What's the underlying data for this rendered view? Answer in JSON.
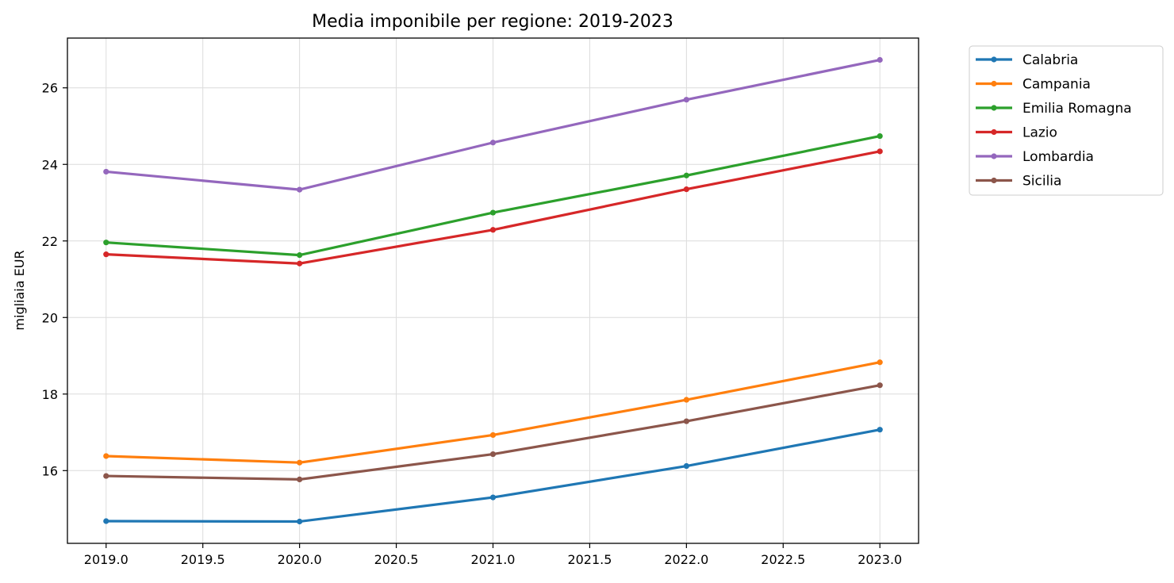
{
  "chart_data": {
    "type": "line",
    "title": "Media imponibile per regione: 2019-2023",
    "xlabel": "",
    "ylabel": "migliaia EUR",
    "x": [
      2019,
      2020,
      2021,
      2022,
      2023
    ],
    "xlim": [
      2018.8,
      2023.2
    ],
    "ylim": [
      14.1,
      27.3
    ],
    "x_ticks": [
      "2019.0",
      "2019.5",
      "2020.0",
      "2020.5",
      "2021.0",
      "2021.5",
      "2022.0",
      "2022.5",
      "2023.0"
    ],
    "x_tick_values": [
      2019.0,
      2019.5,
      2020.0,
      2020.5,
      2021.0,
      2021.5,
      2022.0,
      2022.5,
      2023.0
    ],
    "y_ticks": [
      "16",
      "18",
      "20",
      "22",
      "24",
      "26"
    ],
    "y_tick_values": [
      16,
      18,
      20,
      22,
      24,
      26
    ],
    "grid": true,
    "legend_position": "outside-top-right",
    "series": [
      {
        "name": "Calabria",
        "color": "#1f77b4",
        "values": [
          14.68,
          14.67,
          15.3,
          16.12,
          17.07
        ]
      },
      {
        "name": "Campania",
        "color": "#ff7f0e",
        "values": [
          16.38,
          16.21,
          16.93,
          17.85,
          18.83
        ]
      },
      {
        "name": "Emilia Romagna",
        "color": "#2ca02c",
        "values": [
          21.96,
          21.63,
          22.74,
          23.71,
          24.74
        ]
      },
      {
        "name": "Lazio",
        "color": "#d62728",
        "values": [
          21.65,
          21.41,
          22.29,
          23.35,
          24.34
        ]
      },
      {
        "name": "Lombardia",
        "color": "#9467bd",
        "values": [
          23.81,
          23.34,
          24.57,
          25.69,
          26.73
        ]
      },
      {
        "name": "Sicilia",
        "color": "#8c564b",
        "values": [
          15.86,
          15.77,
          16.43,
          17.29,
          18.23
        ]
      }
    ]
  }
}
